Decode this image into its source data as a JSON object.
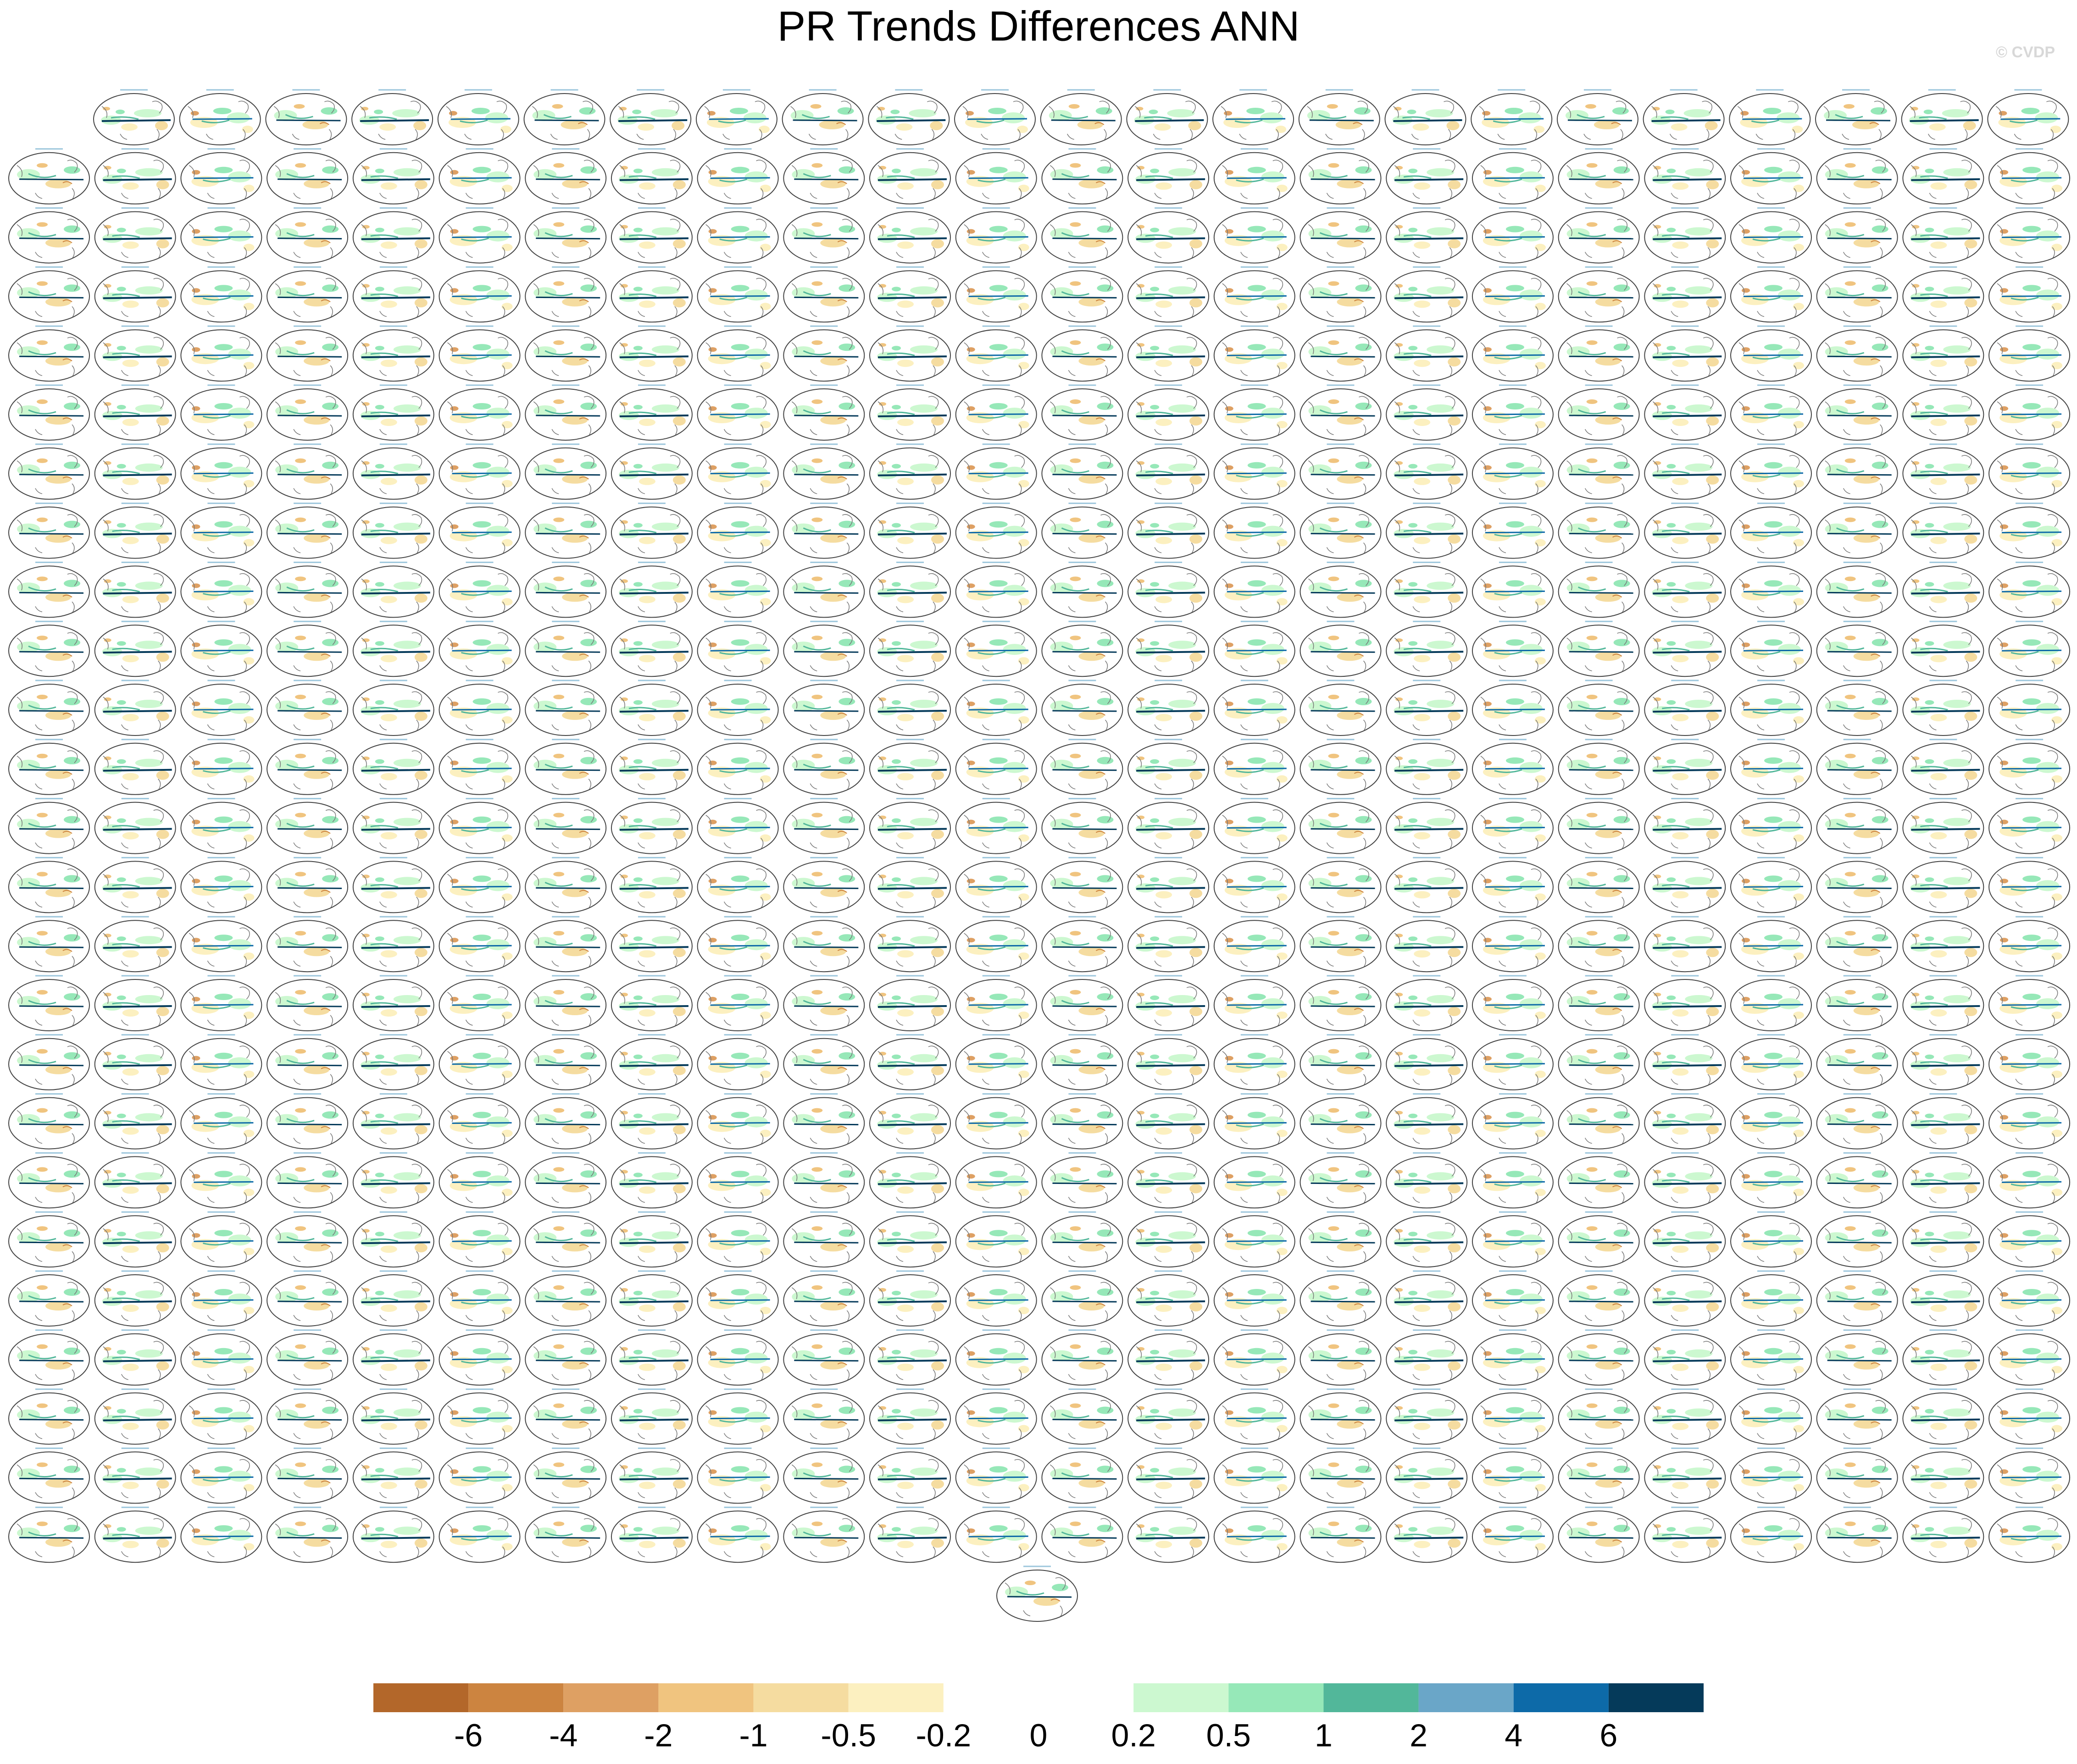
{
  "title": "PR Trends Differences ANN",
  "watermark": "© CVDP",
  "colorbar": {
    "levels": [
      -6,
      -4,
      -2,
      -1,
      -0.5,
      -0.2,
      0,
      0.2,
      0.5,
      1,
      2,
      4,
      6
    ],
    "colors": [
      "#b3672a",
      "#cc8440",
      "#dea063",
      "#f0c47f",
      "#f5dca0",
      "#fcf0c0",
      "#ffffff",
      "#ffffff",
      "#ccf8d0",
      "#96e8b8",
      "#52b79a",
      "#6aa6c8",
      "#0d6aa8",
      "#053a5a"
    ]
  }
}
